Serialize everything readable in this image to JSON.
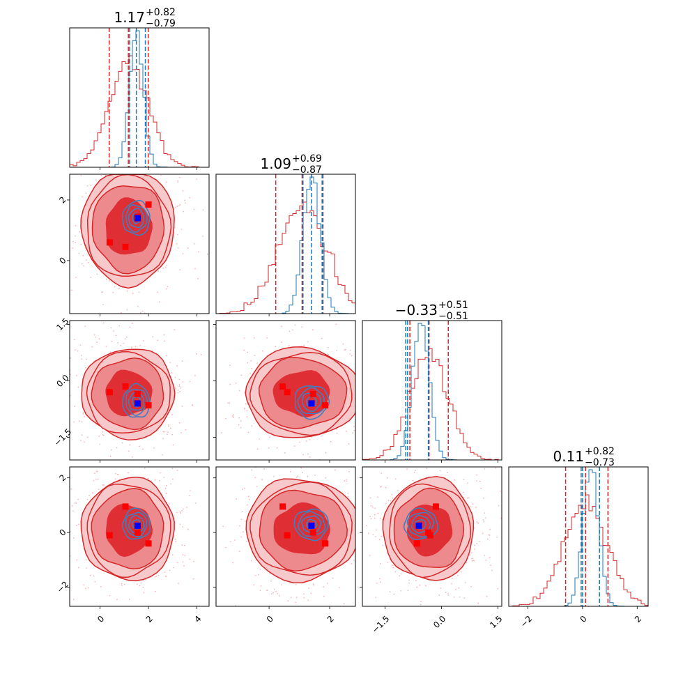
{
  "chart_data": {
    "type": "corner",
    "n_params": 4,
    "grid": "off",
    "legend": "none",
    "colors": {
      "wide": "#d62728",
      "narrow": "#1f77b4",
      "truth_narrow": "#0000ff",
      "truth_wide": "#ff0000"
    },
    "params": [
      {
        "range": [
          -1.25,
          4.5
        ],
        "ticks": [
          {
            "v": 0,
            "label": "0"
          },
          {
            "v": 2,
            "label": "2"
          },
          {
            "v": 4,
            "label": "4"
          }
        ],
        "title": {
          "median": "1.17",
          "plus": "+0.82",
          "minus": "−0.79"
        },
        "wide": {
          "mean": 1.17,
          "sd": 0.8,
          "q16": 0.38,
          "q50": 1.17,
          "q84": 1.99
        },
        "narrow": {
          "mean": 1.5,
          "sd": 0.28,
          "q16": 1.22,
          "q50": 1.5,
          "q84": 1.87
        }
      },
      {
        "range": [
          -1.75,
          2.85
        ],
        "ticks": [
          {
            "v": 0,
            "label": "0"
          },
          {
            "v": 2,
            "label": "2"
          }
        ],
        "title": {
          "median": "1.09",
          "plus": "+0.69",
          "minus": "−0.87"
        },
        "wide": {
          "mean": 1.09,
          "sd": 0.78,
          "q16": 0.22,
          "q50": 1.09,
          "q84": 1.78
        },
        "narrow": {
          "mean": 1.4,
          "sd": 0.28,
          "q16": 1.12,
          "q50": 1.4,
          "q84": 1.75
        }
      },
      {
        "range": [
          -2.1,
          1.6
        ],
        "ticks": [
          {
            "v": -1.5,
            "label": "−1.5"
          },
          {
            "v": 0.0,
            "label": "0.0"
          },
          {
            "v": 1.5,
            "label": "1.5"
          }
        ],
        "title": {
          "median": "−0.33",
          "plus": "+0.51",
          "minus": "−0.51"
        },
        "wide": {
          "mean": -0.33,
          "sd": 0.5,
          "q16": -0.84,
          "q50": -0.33,
          "q84": 0.18
        },
        "narrow": {
          "mean": -0.55,
          "sd": 0.22,
          "q16": -0.9,
          "q50": -0.95,
          "q84": -0.35
        }
      },
      {
        "range": [
          -2.7,
          2.4
        ],
        "ticks": [
          {
            "v": -2,
            "label": "−2"
          },
          {
            "v": 0,
            "label": "0"
          },
          {
            "v": 2,
            "label": "2"
          }
        ],
        "title": {
          "median": "0.11",
          "plus": "+0.82",
          "minus": "−0.73"
        },
        "wide": {
          "mean": 0.11,
          "sd": 0.78,
          "q16": -0.62,
          "q50": 0.11,
          "q84": 0.93
        },
        "narrow": {
          "mean": 0.3,
          "sd": 0.28,
          "q16": -0.05,
          "q50": 0.0,
          "q84": 0.62
        }
      }
    ],
    "truth_narrow": [
      1.55,
      1.4,
      -0.6,
      0.25
    ],
    "truth_wide_points": [
      [
        0.4,
        0.6,
        -0.3,
        -0.1
      ],
      [
        1.05,
        0.45,
        -0.15,
        0.95
      ],
      [
        1.55,
        1.45,
        -0.35,
        0.0
      ],
      [
        2.0,
        1.85,
        -0.65,
        -0.4
      ]
    ]
  }
}
